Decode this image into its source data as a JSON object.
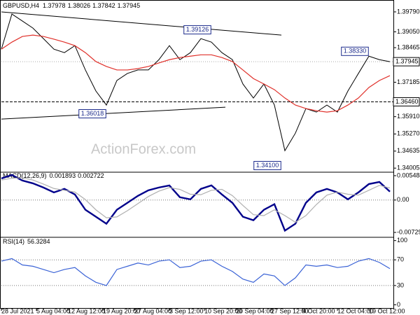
{
  "chart_data": [
    {
      "type": "line",
      "symbol": "GBPUSD,H4",
      "open": 1.37978,
      "high": 1.38026,
      "low": 1.37842,
      "close": 1.37945,
      "watermark": "ActionForex.com",
      "x": [
        0,
        3,
        6,
        9,
        12,
        15,
        18,
        21,
        24,
        27,
        30,
        33,
        36,
        39,
        42,
        45,
        48,
        51,
        54,
        57,
        60,
        63,
        66,
        69,
        72,
        75,
        78,
        81,
        84,
        87,
        90,
        93,
        96,
        99,
        102,
        105,
        108,
        111
      ],
      "xlim": [
        0,
        112
      ],
      "xticks": [
        {
          "value": 0,
          "label": "28 Jul 2021"
        },
        {
          "value": 10,
          "label": "5 Aug 04:00"
        },
        {
          "value": 19,
          "label": "12 Aug 12:00"
        },
        {
          "value": 29,
          "label": "19 Aug 20:00"
        },
        {
          "value": 38,
          "label": "27 Aug 04:00"
        },
        {
          "value": 48,
          "label": "3 Sep 12:00"
        },
        {
          "value": 58,
          "label": "10 Sep 20:00"
        },
        {
          "value": 67,
          "label": "20 Sep 04:00"
        },
        {
          "value": 77,
          "label": "27 Sep 12:00"
        },
        {
          "value": 86,
          "label": "4 Oct 20:00"
        },
        {
          "value": 96,
          "label": "12 Oct 04:00"
        },
        {
          "value": 105,
          "label": "19 Oct 12:00"
        }
      ],
      "ylim": [
        1.3388,
        1.401
      ],
      "yticks": [
        {
          "value": 1.3979,
          "label": "1.39790"
        },
        {
          "value": 1.3905,
          "label": "1.39050"
        },
        1.38465,
        1.37185,
        {
          "value": 1.3591,
          "label": "1.35910"
        },
        {
          "value": 1.3527,
          "label": "1.35270"
        },
        1.34635,
        1.34005
      ],
      "series": [
        {
          "name": "Close",
          "color": "#000000",
          "values": [
            1.3841,
            1.3971,
            1.3945,
            1.3919,
            1.388,
            1.3841,
            1.3828,
            1.3854,
            1.3764,
            1.3686,
            1.3634,
            1.3725,
            1.3751,
            1.3764,
            1.3764,
            1.3802,
            1.3854,
            1.3802,
            1.3828,
            1.388,
            1.3867,
            1.3828,
            1.3802,
            1.3712,
            1.366,
            1.3712,
            1.3634,
            1.3465,
            1.353,
            1.3621,
            1.3608,
            1.3634,
            1.3608,
            1.3686,
            1.3751,
            1.3815,
            1.3802,
            1.37945
          ]
        },
        {
          "name": "MA",
          "color": "#e0302a",
          "values": [
            1.3841,
            1.3867,
            1.3888,
            1.3893,
            1.3888,
            1.3878,
            1.3867,
            1.3854,
            1.3828,
            1.3795,
            1.3777,
            1.3764,
            1.3764,
            1.3769,
            1.3777,
            1.379,
            1.3802,
            1.381,
            1.3815,
            1.382,
            1.382,
            1.381,
            1.3795,
            1.3764,
            1.3732,
            1.3712,
            1.3691,
            1.366,
            1.3634,
            1.3621,
            1.3613,
            1.3608,
            1.3613,
            1.3634,
            1.366,
            1.3699,
            1.3725,
            1.3743
          ]
        }
      ],
      "trendlines": [
        {
          "x": [
            0,
            80
          ],
          "y": [
            1.3979,
            1.3893
          ]
        },
        {
          "x": [
            0,
            64
          ],
          "y": [
            1.3582,
            1.3626
          ]
        }
      ],
      "current_price": {
        "value": 1.37945,
        "label": "1.37945"
      },
      "levels": [
        {
          "value": 1.3646,
          "label": "1.36460"
        }
      ],
      "annotations": [
        {
          "x": 56,
          "y": 1.39126,
          "label": "1.39126"
        },
        {
          "x": 26,
          "y": 1.36018,
          "label": "1.36018"
        },
        {
          "x": 76,
          "y": 1.341,
          "label": "1.34100"
        },
        {
          "x": 101,
          "y": 1.3833,
          "label": "1.38330"
        }
      ]
    },
    {
      "type": "line",
      "title": "MACD(12,26,9)",
      "macd": 0.001893,
      "signal": 0.002722,
      "ylim": [
        -0.00823,
        0.00611
      ],
      "yticks": [
        0.005484,
        {
          "value": 0,
          "label": "0.00"
        },
        -0.00729
      ],
      "levels": [
        0
      ],
      "series": [
        {
          "name": "MACD",
          "color": "#00008b",
          "values": [
            0.00486,
            0.00564,
            0.00439,
            0.00376,
            0.00282,
            0.00172,
            0.00251,
            0.00125,
            -0.00219,
            -0.00376,
            -0.00533,
            -0.00219,
            -0.00063,
            0.00094,
            0.00219,
            0.00282,
            0.00329,
            0.00063,
            0.00016,
            0.00251,
            0.00329,
            0.00125,
            -0.00063,
            -0.00376,
            -0.00454,
            -0.00219,
            -0.00094,
            -0.00689,
            -0.00533,
            -0.00063,
            0.00172,
            0.00251,
            0.00172,
            0.00016,
            0.00172,
            0.0036,
            0.00407,
            0.001893
          ]
        },
        {
          "name": "Signal",
          "color": "#b0b0b0",
          "values": [
            0.0045,
            0.0049,
            0.005,
            0.0045,
            0.0036,
            0.0026,
            0.0022,
            0.0018,
            0.0001,
            -0.0022,
            -0.004,
            -0.0038,
            -0.0024,
            -0.0008,
            0.0008,
            0.002,
            0.0028,
            0.0024,
            0.0013,
            0.0012,
            0.0022,
            0.0024,
            0.001,
            -0.0012,
            -0.0033,
            -0.0035,
            -0.0022,
            -0.0035,
            -0.005,
            -0.0035,
            -0.001,
            0.0011,
            0.0018,
            0.0013,
            0.0011,
            0.0022,
            0.0033,
            0.002722
          ]
        }
      ]
    },
    {
      "type": "line",
      "title": "RSI(14)",
      "rsi": 56.3284,
      "ylim": [
        -5,
        104
      ],
      "yticks": [
        100,
        70,
        30,
        0
      ],
      "levels": [
        70,
        30
      ],
      "series": [
        {
          "name": "RSI",
          "color": "#3a62d6",
          "values": [
            68,
            72,
            62,
            60,
            55,
            50,
            55,
            58,
            45,
            35,
            30,
            55,
            60,
            65,
            62,
            68,
            70,
            58,
            60,
            68,
            70,
            60,
            52,
            40,
            35,
            48,
            45,
            30,
            42,
            62,
            60,
            62,
            58,
            60,
            68,
            72,
            66,
            56.3284
          ]
        }
      ]
    }
  ]
}
